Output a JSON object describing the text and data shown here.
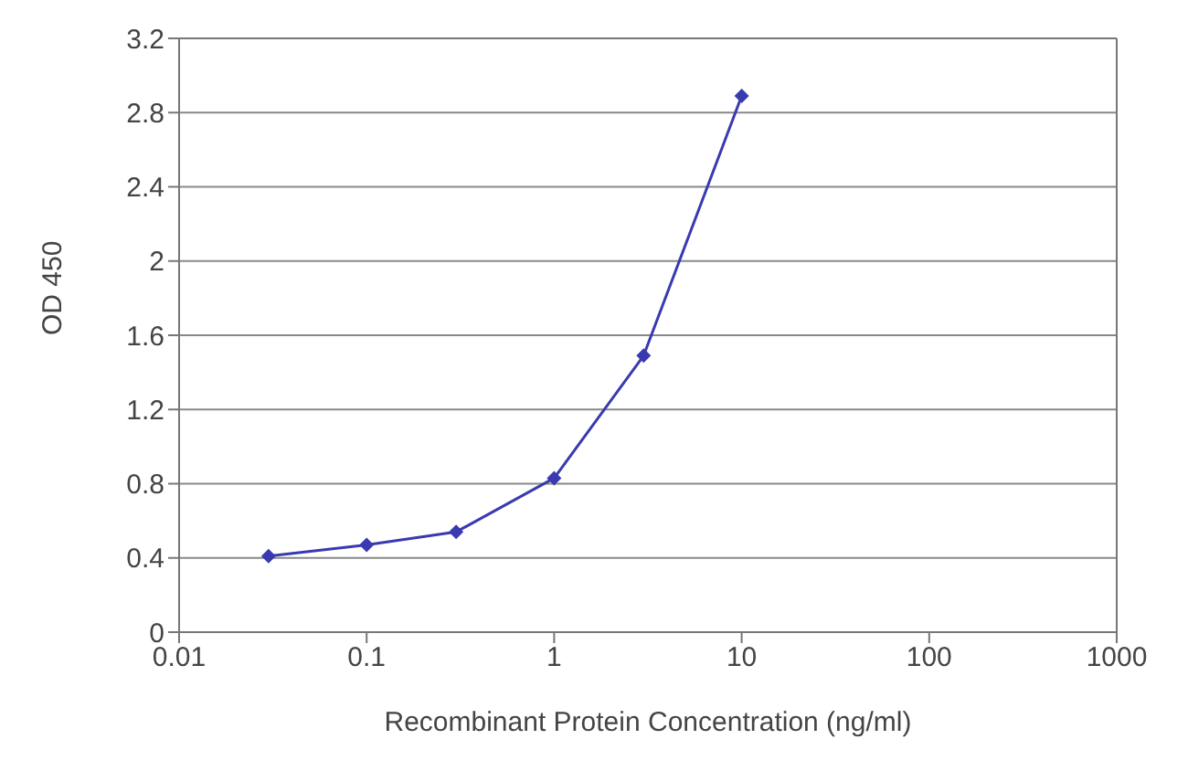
{
  "chart_data": {
    "type": "line",
    "xlabel": "Recombinant Protein Concentration (ng/ml)",
    "ylabel": "OD 450",
    "x": [
      0.03,
      0.1,
      0.3,
      1,
      3,
      10
    ],
    "series": [
      {
        "color": "#3a3ab0",
        "values": [
          0.41,
          0.47,
          0.54,
          0.83,
          1.49,
          2.89
        ]
      }
    ],
    "log": "x",
    "xlim": [
      0.01,
      1000
    ],
    "xticks": [
      0.01,
      0.1,
      1,
      10,
      100,
      1000
    ],
    "ylim": [
      0,
      3.2
    ],
    "yticks": [
      0,
      0.4,
      0.8,
      1.2,
      1.6,
      2,
      2.4,
      2.8,
      3.2
    ],
    "grid": "y",
    "marker": "diamond",
    "line_style": "solid",
    "legend": false
  }
}
